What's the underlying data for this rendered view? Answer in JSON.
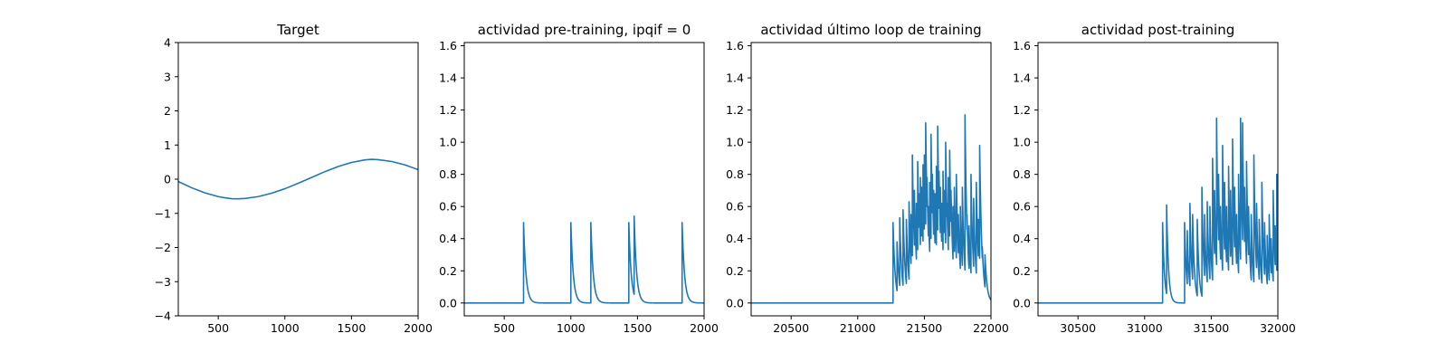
{
  "chart_data": [
    {
      "type": "line",
      "title": "Target",
      "xlabel": "",
      "ylabel": "",
      "xlim": [
        200,
        2000
      ],
      "ylim": [
        -4,
        4
      ],
      "xticks": [
        500,
        1000,
        1500,
        2000
      ],
      "xtick_labels": [
        "500",
        "1000",
        "1500",
        "2000"
      ],
      "yticks": [
        -4,
        -3,
        -2,
        -1,
        0,
        1,
        2,
        3,
        4
      ],
      "ytick_labels": [
        "−4",
        "−3",
        "−2",
        "−1",
        "0",
        "1",
        "2",
        "3",
        "4"
      ],
      "grid": false,
      "legend": "none",
      "color": "#1f77b4",
      "series": [
        {
          "x": [
            200,
            300,
            400,
            500,
            550,
            600,
            650,
            700,
            800,
            900,
            1000,
            1100,
            1200,
            1300,
            1400,
            1500,
            1600,
            1650,
            1700,
            1800,
            1900,
            2000
          ],
          "y": [
            -0.07,
            -0.25,
            -0.4,
            -0.51,
            -0.545,
            -0.57,
            -0.575,
            -0.565,
            -0.51,
            -0.41,
            -0.28,
            -0.12,
            0.05,
            0.22,
            0.37,
            0.49,
            0.565,
            0.58,
            0.57,
            0.52,
            0.42,
            0.28
          ]
        }
      ]
    },
    {
      "type": "line",
      "title": "actividad pre-training, ipqif = 0",
      "xlabel": "",
      "ylabel": "",
      "xlim": [
        200,
        2000
      ],
      "ylim": [
        -0.08,
        1.62
      ],
      "xticks": [
        500,
        1000,
        1500,
        2000
      ],
      "xtick_labels": [
        "500",
        "1000",
        "1500",
        "2000"
      ],
      "yticks": [
        0,
        0.2,
        0.4,
        0.6,
        0.8,
        1.0,
        1.2,
        1.4,
        1.6
      ],
      "ytick_labels": [
        "0.0",
        "0.2",
        "0.4",
        "0.6",
        "0.8",
        "1.0",
        "1.2",
        "1.4",
        "1.6"
      ],
      "grid": false,
      "legend": "none",
      "color": "#1f77b4",
      "series": [
        {
          "spikes": [
            {
              "t": 645,
              "a": 0.5
            },
            {
              "t": 1000,
              "a": 0.5
            },
            {
              "t": 1150,
              "a": 0.5
            },
            {
              "t": 1435,
              "a": 0.5
            },
            {
              "t": 1475,
              "a": 0.54
            },
            {
              "t": 1835,
              "a": 0.5
            }
          ],
          "decay": 18
        }
      ]
    },
    {
      "type": "line",
      "title": "actividad último loop de training",
      "xlabel": "",
      "ylabel": "",
      "xlim": [
        20200,
        22000
      ],
      "ylim": [
        -0.08,
        1.62
      ],
      "xticks": [
        20500,
        21000,
        21500,
        22000
      ],
      "xtick_labels": [
        "20500",
        "21000",
        "21500",
        "22000"
      ],
      "yticks": [
        0,
        0.2,
        0.4,
        0.6,
        0.8,
        1.0,
        1.2,
        1.4,
        1.6
      ],
      "ytick_labels": [
        "0.0",
        "0.2",
        "0.4",
        "0.6",
        "0.8",
        "1.0",
        "1.2",
        "1.4",
        "1.6"
      ],
      "grid": false,
      "legend": "none",
      "color": "#1f77b4",
      "series": [
        {
          "spikes": [
            {
              "t": 21265,
              "a": 0.5
            },
            {
              "t": 21295,
              "a": 0.38
            },
            {
              "t": 21315,
              "a": 0.53
            },
            {
              "t": 21340,
              "a": 0.58
            },
            {
              "t": 21365,
              "a": 0.52
            },
            {
              "t": 21385,
              "a": 0.63
            },
            {
              "t": 21400,
              "a": 0.55
            },
            {
              "t": 21410,
              "a": 0.92
            },
            {
              "t": 21425,
              "a": 0.7
            },
            {
              "t": 21440,
              "a": 0.62
            },
            {
              "t": 21450,
              "a": 0.88
            },
            {
              "t": 21460,
              "a": 0.68
            },
            {
              "t": 21470,
              "a": 0.78
            },
            {
              "t": 21480,
              "a": 0.72
            },
            {
              "t": 21490,
              "a": 0.86
            },
            {
              "t": 21500,
              "a": 0.92
            },
            {
              "t": 21510,
              "a": 1.12
            },
            {
              "t": 21520,
              "a": 0.78
            },
            {
              "t": 21530,
              "a": 0.6
            },
            {
              "t": 21540,
              "a": 0.75
            },
            {
              "t": 21550,
              "a": 1.05
            },
            {
              "t": 21560,
              "a": 0.8
            },
            {
              "t": 21570,
              "a": 0.7
            },
            {
              "t": 21580,
              "a": 0.68
            },
            {
              "t": 21590,
              "a": 0.85
            },
            {
              "t": 21600,
              "a": 1.1
            },
            {
              "t": 21610,
              "a": 0.82
            },
            {
              "t": 21620,
              "a": 0.72
            },
            {
              "t": 21630,
              "a": 0.62
            },
            {
              "t": 21640,
              "a": 0.82
            },
            {
              "t": 21650,
              "a": 0.7
            },
            {
              "t": 21660,
              "a": 1.0
            },
            {
              "t": 21670,
              "a": 0.62
            },
            {
              "t": 21680,
              "a": 0.78
            },
            {
              "t": 21690,
              "a": 0.95
            },
            {
              "t": 21700,
              "a": 0.7
            },
            {
              "t": 21715,
              "a": 0.6
            },
            {
              "t": 21725,
              "a": 0.72
            },
            {
              "t": 21740,
              "a": 0.8
            },
            {
              "t": 21755,
              "a": 0.55
            },
            {
              "t": 21770,
              "a": 0.6
            },
            {
              "t": 21785,
              "a": 0.72
            },
            {
              "t": 21805,
              "a": 1.17
            },
            {
              "t": 21820,
              "a": 0.55
            },
            {
              "t": 21835,
              "a": 0.48
            },
            {
              "t": 21850,
              "a": 0.8
            },
            {
              "t": 21870,
              "a": 0.65
            },
            {
              "t": 21890,
              "a": 0.75
            },
            {
              "t": 21905,
              "a": 0.52
            },
            {
              "t": 21915,
              "a": 0.98
            },
            {
              "t": 21935,
              "a": 0.35
            },
            {
              "t": 21955,
              "a": 0.3
            }
          ],
          "decay": 16
        }
      ]
    },
    {
      "type": "line",
      "title": "actividad post-training",
      "xlabel": "",
      "ylabel": "",
      "xlim": [
        30200,
        32000
      ],
      "ylim": [
        -0.08,
        1.62
      ],
      "xticks": [
        30500,
        31000,
        31500,
        32000
      ],
      "xtick_labels": [
        "30500",
        "31000",
        "31500",
        "32000"
      ],
      "yticks": [
        0,
        0.2,
        0.4,
        0.6,
        0.8,
        1.0,
        1.2,
        1.4,
        1.6
      ],
      "ytick_labels": [
        "0.0",
        "0.2",
        "0.4",
        "0.6",
        "0.8",
        "1.0",
        "1.2",
        "1.4",
        "1.6"
      ],
      "grid": false,
      "legend": "none",
      "color": "#1f77b4",
      "series": [
        {
          "spikes": [
            {
              "t": 31135,
              "a": 0.5
            },
            {
              "t": 31165,
              "a": 0.61
            },
            {
              "t": 31300,
              "a": 0.5
            },
            {
              "t": 31320,
              "a": 0.45
            },
            {
              "t": 31340,
              "a": 0.62
            },
            {
              "t": 31360,
              "a": 0.55
            },
            {
              "t": 31395,
              "a": 0.52
            },
            {
              "t": 31430,
              "a": 0.72
            },
            {
              "t": 31450,
              "a": 0.55
            },
            {
              "t": 31470,
              "a": 0.63
            },
            {
              "t": 31490,
              "a": 0.6
            },
            {
              "t": 31510,
              "a": 0.9
            },
            {
              "t": 31525,
              "a": 0.7
            },
            {
              "t": 31540,
              "a": 1.15
            },
            {
              "t": 31555,
              "a": 0.8
            },
            {
              "t": 31570,
              "a": 0.6
            },
            {
              "t": 31585,
              "a": 0.98
            },
            {
              "t": 31600,
              "a": 0.75
            },
            {
              "t": 31615,
              "a": 0.6
            },
            {
              "t": 31630,
              "a": 0.85
            },
            {
              "t": 31645,
              "a": 0.7
            },
            {
              "t": 31660,
              "a": 1.02
            },
            {
              "t": 31675,
              "a": 0.72
            },
            {
              "t": 31690,
              "a": 0.55
            },
            {
              "t": 31705,
              "a": 0.8
            },
            {
              "t": 31720,
              "a": 1.15
            },
            {
              "t": 31735,
              "a": 1.12
            },
            {
              "t": 31750,
              "a": 0.72
            },
            {
              "t": 31765,
              "a": 0.88
            },
            {
              "t": 31780,
              "a": 0.6
            },
            {
              "t": 31800,
              "a": 0.55
            },
            {
              "t": 31820,
              "a": 0.92
            },
            {
              "t": 31840,
              "a": 0.62
            },
            {
              "t": 31860,
              "a": 0.52
            },
            {
              "t": 31880,
              "a": 0.75
            },
            {
              "t": 31900,
              "a": 0.5
            },
            {
              "t": 31920,
              "a": 0.42
            },
            {
              "t": 31935,
              "a": 0.55
            },
            {
              "t": 31950,
              "a": 0.4
            },
            {
              "t": 31965,
              "a": 0.7
            },
            {
              "t": 31980,
              "a": 0.48
            },
            {
              "t": 31992,
              "a": 0.8
            }
          ],
          "decay": 14
        }
      ]
    }
  ]
}
